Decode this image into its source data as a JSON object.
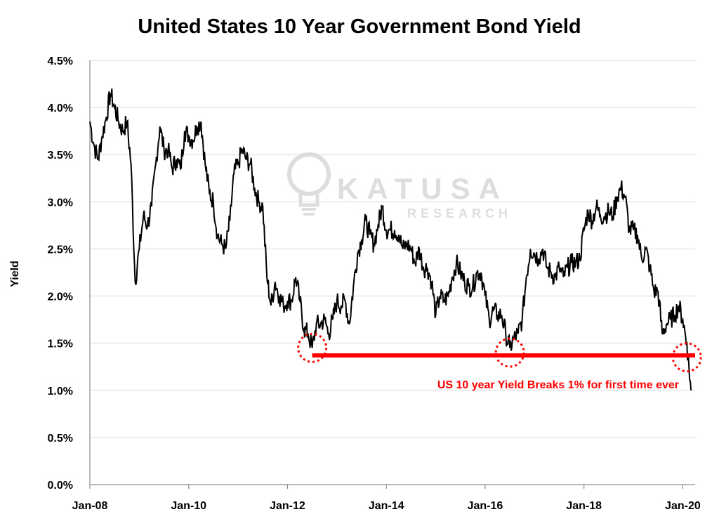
{
  "chart_data": {
    "type": "line",
    "title": "United States 10 Year Government Bond Yield",
    "xlabel": "",
    "ylabel": "Yield",
    "x_range": [
      "2008-01",
      "2020-04"
    ],
    "ylim": [
      0.0,
      4.5
    ],
    "y_ticks": [
      "0.0%",
      "0.5%",
      "1.0%",
      "1.5%",
      "2.0%",
      "2.5%",
      "3.0%",
      "3.5%",
      "4.0%",
      "4.5%"
    ],
    "x_ticks": [
      "Jan-08",
      "Jan-10",
      "Jan-12",
      "Jan-14",
      "Jan-16",
      "Jan-18",
      "Jan-20"
    ],
    "grid": "horizontal",
    "legend": "none",
    "series": [
      {
        "color": "#000000",
        "points": [
          [
            "2008-01",
            3.85
          ],
          [
            "2008-02",
            3.6
          ],
          [
            "2008-03",
            3.45
          ],
          [
            "2008-04",
            3.7
          ],
          [
            "2008-05",
            3.9
          ],
          [
            "2008-06",
            4.15
          ],
          [
            "2008-07",
            4.0
          ],
          [
            "2008-08",
            3.85
          ],
          [
            "2008-09",
            3.75
          ],
          [
            "2008-10",
            3.85
          ],
          [
            "2008-11",
            3.4
          ],
          [
            "2008-12",
            2.15
          ],
          [
            "2009-01",
            2.5
          ],
          [
            "2009-02",
            2.85
          ],
          [
            "2009-03",
            2.75
          ],
          [
            "2009-04",
            2.95
          ],
          [
            "2009-05",
            3.4
          ],
          [
            "2009-06",
            3.8
          ],
          [
            "2009-07",
            3.55
          ],
          [
            "2009-08",
            3.55
          ],
          [
            "2009-09",
            3.35
          ],
          [
            "2009-10",
            3.45
          ],
          [
            "2009-11",
            3.35
          ],
          [
            "2009-12",
            3.75
          ],
          [
            "2010-01",
            3.7
          ],
          [
            "2010-02",
            3.65
          ],
          [
            "2010-03",
            3.8
          ],
          [
            "2010-04",
            3.85
          ],
          [
            "2010-05",
            3.4
          ],
          [
            "2010-06",
            3.1
          ],
          [
            "2010-07",
            3.0
          ],
          [
            "2010-08",
            2.65
          ],
          [
            "2010-09",
            2.55
          ],
          [
            "2010-10",
            2.5
          ],
          [
            "2010-11",
            2.8
          ],
          [
            "2010-12",
            3.3
          ],
          [
            "2011-01",
            3.4
          ],
          [
            "2011-02",
            3.55
          ],
          [
            "2011-03",
            3.45
          ],
          [
            "2011-04",
            3.4
          ],
          [
            "2011-05",
            3.15
          ],
          [
            "2011-06",
            3.0
          ],
          [
            "2011-07",
            2.95
          ],
          [
            "2011-08",
            2.2
          ],
          [
            "2011-09",
            1.9
          ],
          [
            "2011-10",
            2.15
          ],
          [
            "2011-11",
            2.0
          ],
          [
            "2011-12",
            1.9
          ],
          [
            "2012-01",
            1.95
          ],
          [
            "2012-02",
            1.95
          ],
          [
            "2012-03",
            2.2
          ],
          [
            "2012-04",
            1.95
          ],
          [
            "2012-05",
            1.65
          ],
          [
            "2012-06",
            1.6
          ],
          [
            "2012-07",
            1.45
          ],
          [
            "2012-08",
            1.7
          ],
          [
            "2012-09",
            1.7
          ],
          [
            "2012-10",
            1.75
          ],
          [
            "2012-11",
            1.6
          ],
          [
            "2012-12",
            1.75
          ],
          [
            "2013-01",
            1.95
          ],
          [
            "2013-02",
            1.9
          ],
          [
            "2013-03",
            1.95
          ],
          [
            "2013-04",
            1.7
          ],
          [
            "2013-05",
            2.1
          ],
          [
            "2013-06",
            2.45
          ],
          [
            "2013-07",
            2.6
          ],
          [
            "2013-08",
            2.8
          ],
          [
            "2013-09",
            2.65
          ],
          [
            "2013-10",
            2.55
          ],
          [
            "2013-11",
            2.75
          ],
          [
            "2013-12",
            2.95
          ],
          [
            "2014-01",
            2.7
          ],
          [
            "2014-02",
            2.7
          ],
          [
            "2014-03",
            2.7
          ],
          [
            "2014-04",
            2.65
          ],
          [
            "2014-05",
            2.5
          ],
          [
            "2014-06",
            2.55
          ],
          [
            "2014-07",
            2.5
          ],
          [
            "2014-08",
            2.35
          ],
          [
            "2014-09",
            2.5
          ],
          [
            "2014-10",
            2.3
          ],
          [
            "2014-11",
            2.3
          ],
          [
            "2014-12",
            2.15
          ],
          [
            "2015-01",
            1.8
          ],
          [
            "2015-02",
            2.0
          ],
          [
            "2015-03",
            1.95
          ],
          [
            "2015-04",
            2.0
          ],
          [
            "2015-05",
            2.2
          ],
          [
            "2015-06",
            2.35
          ],
          [
            "2015-07",
            2.25
          ],
          [
            "2015-08",
            2.15
          ],
          [
            "2015-09",
            2.1
          ],
          [
            "2015-10",
            2.1
          ],
          [
            "2015-11",
            2.25
          ],
          [
            "2015-12",
            2.25
          ],
          [
            "2016-01",
            2.0
          ],
          [
            "2016-02",
            1.75
          ],
          [
            "2016-03",
            1.85
          ],
          [
            "2016-04",
            1.8
          ],
          [
            "2016-05",
            1.8
          ],
          [
            "2016-06",
            1.6
          ],
          [
            "2016-07",
            1.45
          ],
          [
            "2016-08",
            1.55
          ],
          [
            "2016-09",
            1.6
          ],
          [
            "2016-10",
            1.75
          ],
          [
            "2016-11",
            2.2
          ],
          [
            "2016-12",
            2.5
          ],
          [
            "2017-01",
            2.45
          ],
          [
            "2017-02",
            2.4
          ],
          [
            "2017-03",
            2.5
          ],
          [
            "2017-04",
            2.3
          ],
          [
            "2017-05",
            2.25
          ],
          [
            "2017-06",
            2.2
          ],
          [
            "2017-07",
            2.3
          ],
          [
            "2017-08",
            2.2
          ],
          [
            "2017-09",
            2.3
          ],
          [
            "2017-10",
            2.35
          ],
          [
            "2017-11",
            2.35
          ],
          [
            "2017-12",
            2.4
          ],
          [
            "2018-01",
            2.7
          ],
          [
            "2018-02",
            2.9
          ],
          [
            "2018-03",
            2.8
          ],
          [
            "2018-04",
            2.95
          ],
          [
            "2018-05",
            2.85
          ],
          [
            "2018-06",
            2.85
          ],
          [
            "2018-07",
            2.9
          ],
          [
            "2018-08",
            2.85
          ],
          [
            "2018-09",
            3.05
          ],
          [
            "2018-10",
            3.15
          ],
          [
            "2018-11",
            3.05
          ],
          [
            "2018-12",
            2.7
          ],
          [
            "2019-01",
            2.7
          ],
          [
            "2019-02",
            2.65
          ],
          [
            "2019-03",
            2.4
          ],
          [
            "2019-04",
            2.5
          ],
          [
            "2019-05",
            2.3
          ],
          [
            "2019-06",
            2.05
          ],
          [
            "2019-07",
            2.05
          ],
          [
            "2019-08",
            1.6
          ],
          [
            "2019-09",
            1.7
          ],
          [
            "2019-10",
            1.75
          ],
          [
            "2019-11",
            1.8
          ],
          [
            "2019-12",
            1.9
          ],
          [
            "2020-01",
            1.75
          ],
          [
            "2020-02",
            1.5
          ],
          [
            "2020-03",
            1.0
          ]
        ]
      }
    ],
    "annotations": {
      "support_line_level": 1.37,
      "support_line_from": "2012-07",
      "support_line_to": "2020-04",
      "circled_points": [
        [
          "2012-07",
          1.45
        ],
        [
          "2016-07",
          1.4
        ],
        [
          "2020-02",
          1.35
        ]
      ],
      "text": "US 10 year Yield Breaks 1% for first time ever",
      "color": "#ff0000"
    },
    "watermark": {
      "brand": "KATUSA",
      "sub": "RESEARCH"
    }
  }
}
